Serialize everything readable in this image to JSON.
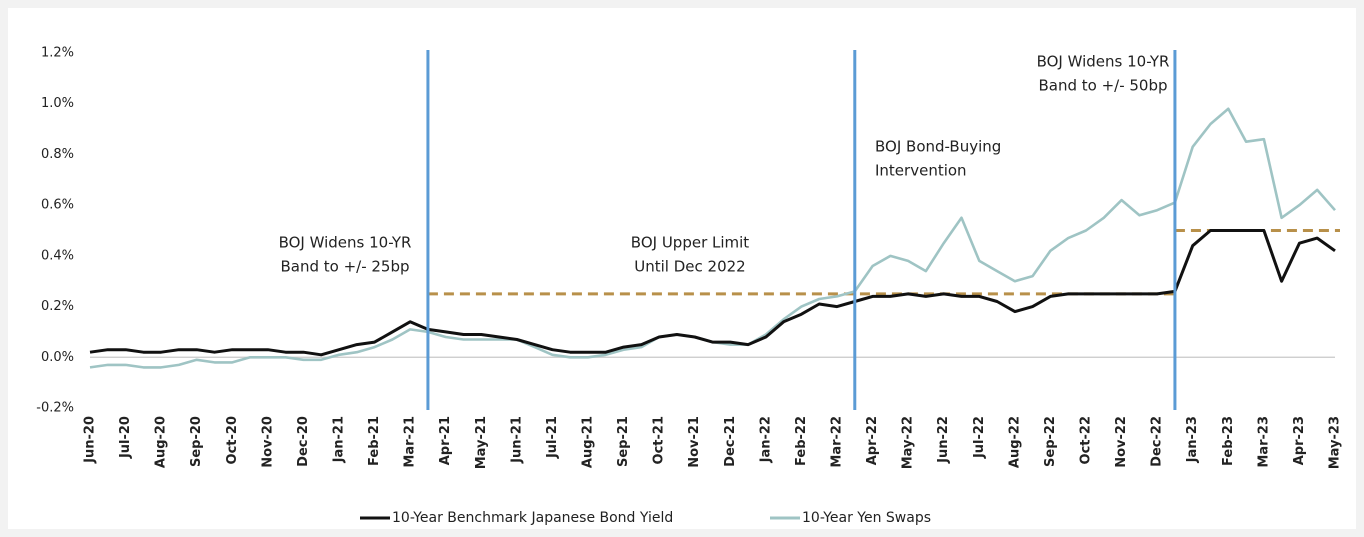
{
  "chart_data": {
    "type": "line",
    "categories": [
      "Jun-20",
      null,
      "Jul-20",
      null,
      "Aug-20",
      null,
      "Sep-20",
      null,
      "Oct-20",
      null,
      "Nov-20",
      null,
      "Dec-20",
      null,
      "Jan-21",
      null,
      "Feb-21",
      null,
      "Mar-21",
      null,
      "Apr-21",
      null,
      "May-21",
      null,
      "Jun-21",
      null,
      "Jul-21",
      null,
      "Aug-21",
      null,
      "Sep-21",
      null,
      "Oct-21",
      null,
      "Nov-21",
      null,
      "Dec-21",
      null,
      "Jan-22",
      null,
      "Feb-22",
      null,
      "Mar-22",
      null,
      "Apr-22",
      null,
      "May-22",
      null,
      "Jun-22",
      null,
      "Jul-22",
      null,
      "Aug-22",
      null,
      "Sep-22",
      null,
      "Oct-22",
      null,
      "Nov-22",
      null,
      "Dec-22",
      null,
      "Jan-23",
      null,
      "Feb-23",
      null,
      "Mar-23",
      null,
      "Apr-23",
      null,
      "May-23"
    ],
    "series": [
      {
        "name": "10-Year Benchmark Japanese Bond Yield",
        "color": "#111111",
        "values": [
          0.02,
          0.03,
          0.03,
          0.02,
          0.02,
          0.03,
          0.03,
          0.02,
          0.03,
          0.03,
          0.03,
          0.02,
          0.02,
          0.01,
          0.03,
          0.05,
          0.06,
          0.1,
          0.14,
          0.11,
          0.1,
          0.09,
          0.09,
          0.08,
          0.07,
          0.05,
          0.03,
          0.02,
          0.02,
          0.02,
          0.04,
          0.05,
          0.08,
          0.09,
          0.08,
          0.06,
          0.06,
          0.05,
          0.08,
          0.14,
          0.17,
          0.21,
          0.2,
          0.22,
          0.24,
          0.24,
          0.25,
          0.24,
          0.25,
          0.24,
          0.24,
          0.22,
          0.18,
          0.2,
          0.24,
          0.25,
          0.25,
          0.25,
          0.25,
          0.25,
          0.25,
          0.26,
          0.44,
          0.5,
          0.5,
          0.5,
          0.5,
          0.3,
          0.45,
          0.47,
          0.42
        ]
      },
      {
        "name": "10-Year Yen Swaps",
        "color": "#9fc4c4",
        "values": [
          -0.04,
          -0.03,
          -0.03,
          -0.04,
          -0.04,
          -0.03,
          -0.01,
          -0.02,
          -0.02,
          0.0,
          0.0,
          0.0,
          -0.01,
          -0.01,
          0.01,
          0.02,
          0.04,
          0.07,
          0.11,
          0.1,
          0.08,
          0.07,
          0.07,
          0.07,
          0.07,
          0.04,
          0.01,
          0.0,
          0.0,
          0.01,
          0.03,
          0.04,
          0.08,
          0.09,
          0.08,
          0.06,
          0.05,
          0.05,
          0.09,
          0.15,
          0.2,
          0.23,
          0.24,
          0.26,
          0.36,
          0.4,
          0.38,
          0.34,
          0.45,
          0.55,
          0.38,
          0.34,
          0.3,
          0.32,
          0.42,
          0.47,
          0.5,
          0.55,
          0.62,
          0.56,
          0.58,
          0.61,
          0.83,
          0.92,
          0.98,
          0.85,
          0.86,
          0.55,
          0.6,
          0.66,
          0.58
        ]
      }
    ],
    "ylim": [
      -0.2,
      1.2
    ],
    "yticks": [
      {
        "value": -0.2,
        "label": "-0.2%"
      },
      {
        "value": 0,
        "label": "0.0%"
      },
      {
        "value": 0.2,
        "label": "0.2%"
      },
      {
        "value": 0.4,
        "label": "0.4%"
      },
      {
        "value": 0.6,
        "label": "0.6%"
      },
      {
        "value": 0.8,
        "label": "0.8%"
      },
      {
        "value": 1.0,
        "label": "1.0%"
      },
      {
        "value": 1.2,
        "label": "1.2%"
      }
    ],
    "event_lines": [
      "Mar-21",
      "Mar-22",
      "Dec-22"
    ],
    "reference_lines": [
      {
        "value": 0.25,
        "from": "Mar-21",
        "to": "Dec-22"
      },
      {
        "value": 0.5,
        "from": "Dec-22",
        "to": "May-23"
      }
    ],
    "annotations": [
      {
        "text": [
          "BOJ Widens 10-YR",
          "Band to +/- 25bp"
        ]
      },
      {
        "text": [
          "BOJ Upper Limit",
          "Until Dec 2022"
        ]
      },
      {
        "text": [
          "BOJ Bond-Buying",
          "Intervention"
        ]
      },
      {
        "text": [
          "BOJ Widens 10-YR",
          "Band to +/- 50bp"
        ]
      }
    ],
    "legend": "bottom"
  }
}
